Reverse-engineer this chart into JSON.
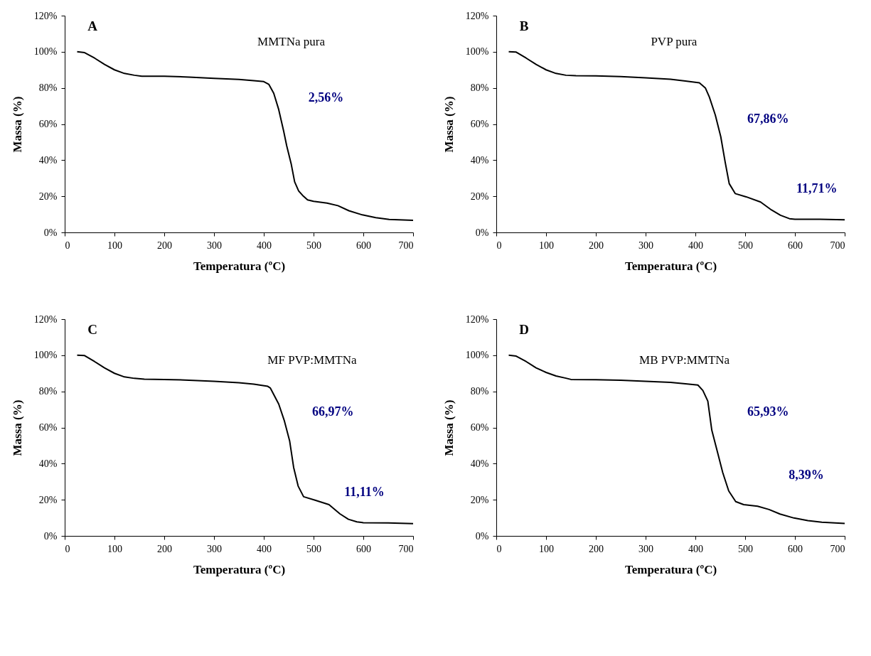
{
  "chart_data": [
    {
      "type": "line",
      "title": "A",
      "subtitle": "MMTNa pura",
      "annotations": [
        "2,56%"
      ],
      "xlabel": "Temperatura (ºC)",
      "ylabel": "Massa (%)",
      "x": [
        25,
        40,
        60,
        80,
        100,
        120,
        140,
        155,
        200,
        250,
        300,
        350,
        380,
        400,
        410,
        420,
        430,
        440,
        446,
        455,
        462,
        470,
        478,
        488,
        500,
        527,
        549,
        571,
        598,
        625,
        652,
        700
      ],
      "series": [
        {
          "color": "#000000",
          "values": [
            100,
            99.5,
            96.5,
            93,
            90,
            88,
            87,
            86.5,
            86.5,
            86,
            85.3,
            84.7,
            84,
            83.5,
            82,
            77,
            68,
            56,
            48,
            38,
            28,
            23,
            20.5,
            18,
            17.2,
            16.2,
            14.8,
            12,
            9.7,
            8.2,
            7.2,
            6.7
          ]
        }
      ],
      "xlim": [
        0,
        700
      ],
      "xticks": [
        0,
        100,
        200,
        300,
        400,
        500,
        600,
        700
      ],
      "ylim": [
        0,
        120
      ],
      "yticks": [
        {
          "value": 0,
          "label": "0%"
        },
        {
          "value": 20,
          "label": "20%"
        },
        {
          "value": 40,
          "label": "40%"
        },
        {
          "value": 60,
          "label": "60%"
        },
        {
          "value": 80,
          "label": "80%"
        },
        {
          "value": 100,
          "label": "100%"
        },
        {
          "value": 120,
          "label": "120%"
        }
      ]
    },
    {
      "type": "line",
      "title": "B",
      "subtitle": "PVP pura",
      "annotations": [
        "67,86%",
        "11,71%"
      ],
      "xlabel": "Temperatura (ºC)",
      "ylabel": "Massa (%)",
      "x": [
        25,
        40,
        60,
        80,
        100,
        120,
        140,
        160,
        200,
        250,
        300,
        350,
        380,
        408,
        420,
        428,
        440,
        451,
        460,
        468,
        480,
        502,
        531,
        553,
        571,
        589,
        600,
        650,
        700
      ],
      "series": [
        {
          "color": "#000000",
          "values": [
            100,
            99.8,
            96.5,
            93,
            90,
            88,
            87,
            86.8,
            86.7,
            86.3,
            85.6,
            84.8,
            83.8,
            82.8,
            80,
            75,
            65,
            53,
            38.7,
            27,
            21.5,
            19.7,
            16.8,
            12.4,
            9.5,
            7.6,
            7.3,
            7.3,
            7
          ]
        }
      ],
      "xlim": [
        0,
        700
      ],
      "xticks": [
        0,
        100,
        200,
        300,
        400,
        500,
        600,
        700
      ],
      "ylim": [
        0,
        120
      ],
      "yticks": [
        {
          "value": 0,
          "label": "0%"
        },
        {
          "value": 20,
          "label": "20%"
        },
        {
          "value": 40,
          "label": "40%"
        },
        {
          "value": 60,
          "label": "60%"
        },
        {
          "value": 80,
          "label": "80%"
        },
        {
          "value": 100,
          "label": "100%"
        },
        {
          "value": 120,
          "label": "120%"
        }
      ]
    },
    {
      "type": "line",
      "title": "C",
      "subtitle": "MF PVP:MMTNa",
      "annotations": [
        "66,97%",
        "11,11%"
      ],
      "xlabel": "Temperatura (ºC)",
      "ylabel": "Massa (%)",
      "x": [
        25,
        40,
        60,
        80,
        100,
        120,
        140,
        160,
        200,
        250,
        300,
        350,
        380,
        408,
        413,
        430,
        441,
        452,
        460,
        469,
        480,
        503,
        531,
        553,
        570,
        587,
        600,
        650,
        700
      ],
      "series": [
        {
          "color": "#000000",
          "values": [
            100,
            99.8,
            96.5,
            93,
            90,
            88,
            87.2,
            86.8,
            86.6,
            86.2,
            85.6,
            84.8,
            84,
            82.8,
            81.9,
            73,
            64,
            52.5,
            37.9,
            27.6,
            21.7,
            19.8,
            17.3,
            12.2,
            9.2,
            7.8,
            7.3,
            7.2,
            6.8
          ]
        }
      ],
      "xlim": [
        0,
        700
      ],
      "xticks": [
        0,
        100,
        200,
        300,
        400,
        500,
        600,
        700
      ],
      "ylim": [
        0,
        120
      ],
      "yticks": [
        {
          "value": 0,
          "label": "0%"
        },
        {
          "value": 20,
          "label": "20%"
        },
        {
          "value": 40,
          "label": "40%"
        },
        {
          "value": 60,
          "label": "60%"
        },
        {
          "value": 80,
          "label": "80%"
        },
        {
          "value": 100,
          "label": "100%"
        },
        {
          "value": 120,
          "label": "120%"
        }
      ]
    },
    {
      "type": "line",
      "title": "D",
      "subtitle": "MB PVP:MMTNa",
      "annotations": [
        "65,93%",
        "8,39%"
      ],
      "xlabel": "Temperatura (ºC)",
      "ylabel": "Massa (%)",
      "x": [
        25,
        40,
        60,
        80,
        100,
        120,
        140,
        150,
        200,
        250,
        300,
        350,
        380,
        405,
        415,
        425,
        433,
        444,
        455,
        467,
        481,
        497,
        525,
        548,
        570,
        598,
        626,
        654,
        700
      ],
      "series": [
        {
          "color": "#000000",
          "values": [
            100,
            99.5,
            96.5,
            93,
            90.5,
            88.5,
            87.3,
            86.6,
            86.5,
            86.2,
            85.6,
            85,
            84.2,
            83.5,
            80.5,
            74.6,
            58.5,
            46.8,
            35,
            24.9,
            19,
            17.3,
            16.4,
            14.6,
            12.1,
            9.9,
            8.5,
            7.6,
            6.9
          ]
        }
      ],
      "xlim": [
        0,
        700
      ],
      "xticks": [
        0,
        100,
        200,
        300,
        400,
        500,
        600,
        700
      ],
      "ylim": [
        0,
        120
      ],
      "yticks": [
        {
          "value": 0,
          "label": "0%"
        },
        {
          "value": 20,
          "label": "20%"
        },
        {
          "value": 40,
          "label": "40%"
        },
        {
          "value": 60,
          "label": "60%"
        },
        {
          "value": 80,
          "label": "80%"
        },
        {
          "value": 100,
          "label": "100%"
        },
        {
          "value": 120,
          "label": "120%"
        }
      ]
    }
  ]
}
